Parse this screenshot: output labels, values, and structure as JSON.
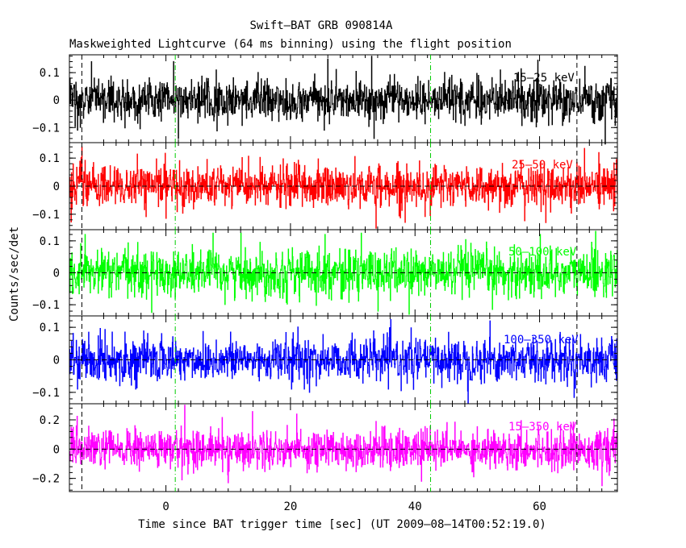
{
  "chart_data": {
    "type": "line",
    "title": "Swift–BAT GRB 090814A",
    "subtitle": "Maskweighted Lightcurve (64 ms binning) using the flight position",
    "xlabel": "Time since BAT trigger time [sec] (UT 2009–08–14T00:52:19.0)",
    "ylabel": "Counts/sec/det",
    "xlim": [
      -15.5,
      72.5
    ],
    "xticks": [
      0,
      20,
      40,
      60
    ],
    "x_tick_labels": [
      "0",
      "20",
      "40",
      "60"
    ],
    "bin_seconds": 0.064,
    "markers": {
      "dashed_black_x": [
        -13.5,
        66
      ],
      "dashdot_green_x": [
        1.5,
        42.5
      ]
    },
    "panels": [
      {
        "name": "15–25 keV",
        "color": "#000000",
        "ylim": [
          -0.155,
          0.165
        ],
        "yticks": [
          -0.1,
          0,
          0.1
        ],
        "ytick_labels": [
          "−0.1",
          "0",
          "0.1"
        ],
        "zero_line": false,
        "noise_sigma": 0.045,
        "peaks": [
          [
            -12,
            0.14
          ],
          [
            2,
            -0.14
          ],
          [
            26,
            0.15
          ],
          [
            33,
            0.16
          ],
          [
            33.4,
            -0.14
          ],
          [
            70.5,
            -0.16
          ]
        ]
      },
      {
        "name": "25–50 keV",
        "color": "#ff0000",
        "ylim": [
          -0.155,
          0.155
        ],
        "yticks": [
          -0.1,
          0,
          0.1
        ],
        "ytick_labels": [
          "−0.1",
          "0",
          "0.1"
        ],
        "zero_line": true,
        "noise_sigma": 0.045,
        "peaks": [
          [
            -13.5,
            0.14
          ],
          [
            33.7,
            -0.15
          ],
          [
            61,
            -0.13
          ],
          [
            69.5,
            0.12
          ]
        ]
      },
      {
        "name": "50–100 keV",
        "color": "#00ff00",
        "ylim": [
          -0.135,
          0.135
        ],
        "yticks": [
          -0.1,
          0,
          0.1
        ],
        "ytick_labels": [
          "−0.1",
          "0",
          "0.1"
        ],
        "zero_line": true,
        "noise_sigma": 0.045,
        "peaks": [
          [
            -13,
            0.12
          ],
          [
            25.5,
            0.12
          ],
          [
            69,
            0.13
          ],
          [
            39,
            -0.13
          ]
        ]
      },
      {
        "name": "100–350 keV",
        "color": "#0000ff",
        "ylim": [
          -0.135,
          0.135
        ],
        "yticks": [
          -0.1,
          0,
          0.1
        ],
        "ytick_labels": [
          "−0.1",
          "0",
          "0.1"
        ],
        "zero_line": true,
        "noise_sigma": 0.04,
        "peaks": [
          [
            48.5,
            -0.135
          ],
          [
            52,
            0.12
          ],
          [
            23,
            -0.1
          ]
        ]
      },
      {
        "name": "15–350 keV",
        "color": "#ff00ff",
        "ylim": [
          -0.29,
          0.31
        ],
        "yticks": [
          -0.2,
          0,
          0.2
        ],
        "ytick_labels": [
          "−0.2",
          "0",
          "0.2"
        ],
        "zero_line": true,
        "noise_sigma": 0.08,
        "peaks": [
          [
            3,
            0.3
          ],
          [
            10,
            -0.23
          ],
          [
            41,
            -0.22
          ],
          [
            70,
            -0.25
          ],
          [
            21,
            0.24
          ]
        ]
      }
    ]
  }
}
